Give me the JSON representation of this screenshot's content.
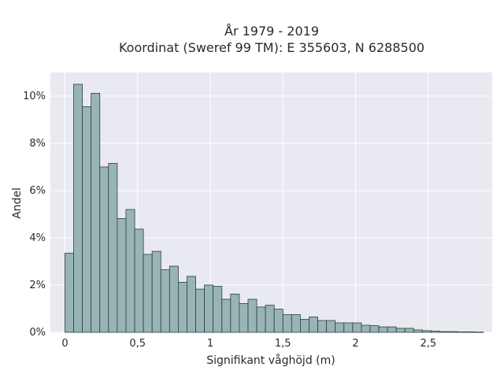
{
  "chart_data": {
    "type": "bar",
    "title": [
      "År 1979 - 2019",
      "Koordinat (Sweref 99 TM): E 355603, N 6288500"
    ],
    "xlabel": "Signifikant våghöjd (m)",
    "ylabel": "Andel",
    "xlim": [
      -0.1,
      2.94
    ],
    "ylim": [
      0,
      11
    ],
    "x_ticks": [
      0,
      0.5,
      1,
      1.5,
      2,
      2.5
    ],
    "x_tick_labels": [
      "0",
      "0,5",
      "1",
      "1,5",
      "2",
      "2,5"
    ],
    "y_ticks": [
      0,
      2,
      4,
      6,
      8,
      10
    ],
    "y_tick_labels": [
      "0%",
      "2%",
      "4%",
      "6%",
      "8%",
      "10%"
    ],
    "grid": true,
    "bin_width": 0.06,
    "bin_start": 0,
    "values": [
      3.35,
      10.5,
      9.55,
      10.12,
      7.0,
      7.15,
      4.82,
      5.2,
      4.37,
      3.3,
      3.43,
      2.65,
      2.8,
      2.12,
      2.37,
      1.83,
      2.0,
      1.95,
      1.4,
      1.62,
      1.22,
      1.4,
      1.07,
      1.15,
      0.98,
      0.75,
      0.75,
      0.55,
      0.65,
      0.5,
      0.5,
      0.4,
      0.4,
      0.4,
      0.3,
      0.28,
      0.23,
      0.23,
      0.17,
      0.17,
      0.1,
      0.07,
      0.05,
      0.03,
      0.03,
      0.02,
      0.02,
      0.01
    ],
    "colors": {
      "bar_fill": "#98b4b4",
      "bar_edge": "#2f3f3f",
      "plot_bg": "#e9e9f1",
      "grid": "#ffffff"
    }
  }
}
